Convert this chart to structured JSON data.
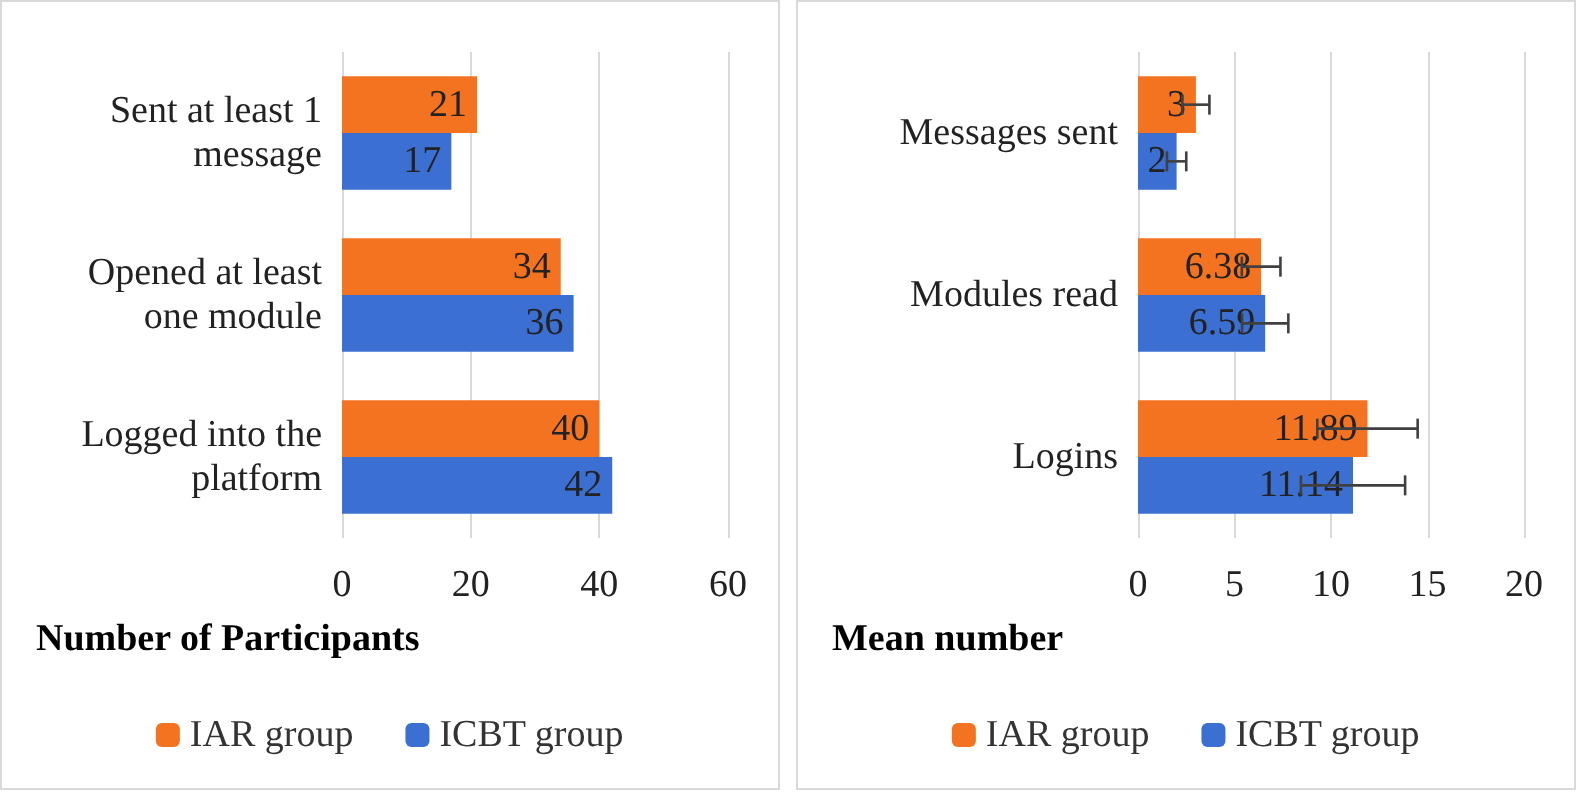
{
  "chart_data": [
    {
      "type": "bar",
      "orientation": "horizontal",
      "xlabel": "Number of Participants",
      "categories": [
        "Sent at least 1 message",
        "Opened at least one module",
        "Logged into the platform"
      ],
      "series": [
        {
          "name": "IAR group",
          "color": "#f47320",
          "values": [
            21,
            34,
            40
          ]
        },
        {
          "name": "ICBT group",
          "color": "#3b6fd2",
          "values": [
            17,
            36,
            42
          ]
        }
      ],
      "xlim": [
        0,
        60
      ],
      "xticks": [
        0,
        20,
        40,
        60
      ],
      "grid": "x",
      "legend": "bottom",
      "data_labels": true
    },
    {
      "type": "bar",
      "orientation": "horizontal",
      "xlabel": "Mean number",
      "categories": [
        "Messages sent",
        "Modules read",
        "Logins"
      ],
      "series": [
        {
          "name": "IAR group",
          "color": "#f47320",
          "values": [
            3,
            6.38,
            11.89
          ],
          "errors": [
            0.7,
            1.0,
            2.6
          ]
        },
        {
          "name": "ICBT group",
          "color": "#3b6fd2",
          "values": [
            2,
            6.59,
            11.14
          ],
          "errors": [
            0.5,
            1.2,
            2.7
          ]
        }
      ],
      "xlim": [
        0,
        20
      ],
      "xticks": [
        0,
        5,
        10,
        15,
        20
      ],
      "grid": "x",
      "legend": "bottom",
      "data_labels": true
    }
  ]
}
